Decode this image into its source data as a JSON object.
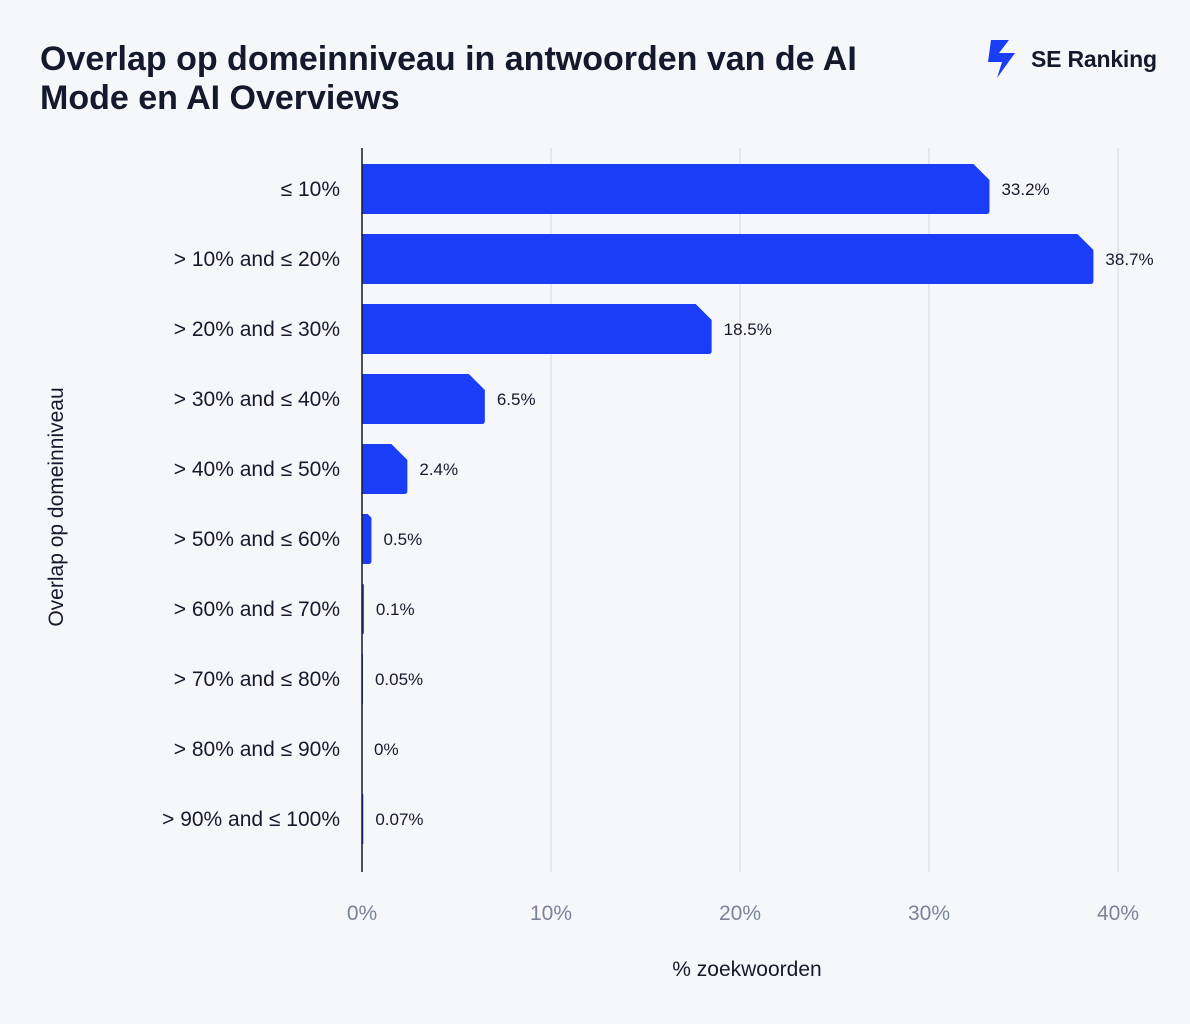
{
  "title": "Overlap op domeinniveau in antwoorden van de AI Mode en AI Overviews",
  "brand": {
    "name": "SE Ranking",
    "logo_icon": "se-ranking-logo-icon"
  },
  "colors": {
    "bar": "#1a3ef7",
    "grid": "#dde1ec",
    "axis": "#141a2b",
    "background": "#f6f7fb"
  },
  "chart_data": {
    "type": "bar",
    "orientation": "horizontal",
    "categories": [
      "≤ 10%",
      "> 10% and ≤ 20%",
      "> 20% and ≤ 30%",
      "> 30% and ≤ 40%",
      "> 40% and ≤ 50%",
      "> 50% and ≤ 60%",
      "> 60% and ≤ 70%",
      "> 70% and ≤ 80%",
      "> 80% and ≤ 90%",
      "> 90% and ≤ 100%"
    ],
    "values": [
      33.2,
      38.7,
      18.5,
      6.5,
      2.4,
      0.5,
      0.1,
      0.05,
      0,
      0.07
    ],
    "value_labels": [
      "33.2%",
      "38.7%",
      "18.5%",
      "6.5%",
      "2.4%",
      "0.5%",
      "0.1%",
      "0.05%",
      "0%",
      "0.07%"
    ],
    "xlabel": "% zoekwoorden",
    "ylabel": "Overlap op domeinniveau",
    "xlim": [
      0,
      40
    ],
    "xticks": [
      0,
      10,
      20,
      30,
      40
    ],
    "xtick_labels": [
      "0%",
      "10%",
      "20%",
      "30%",
      "40%"
    ],
    "grid": true,
    "legend": "none"
  }
}
